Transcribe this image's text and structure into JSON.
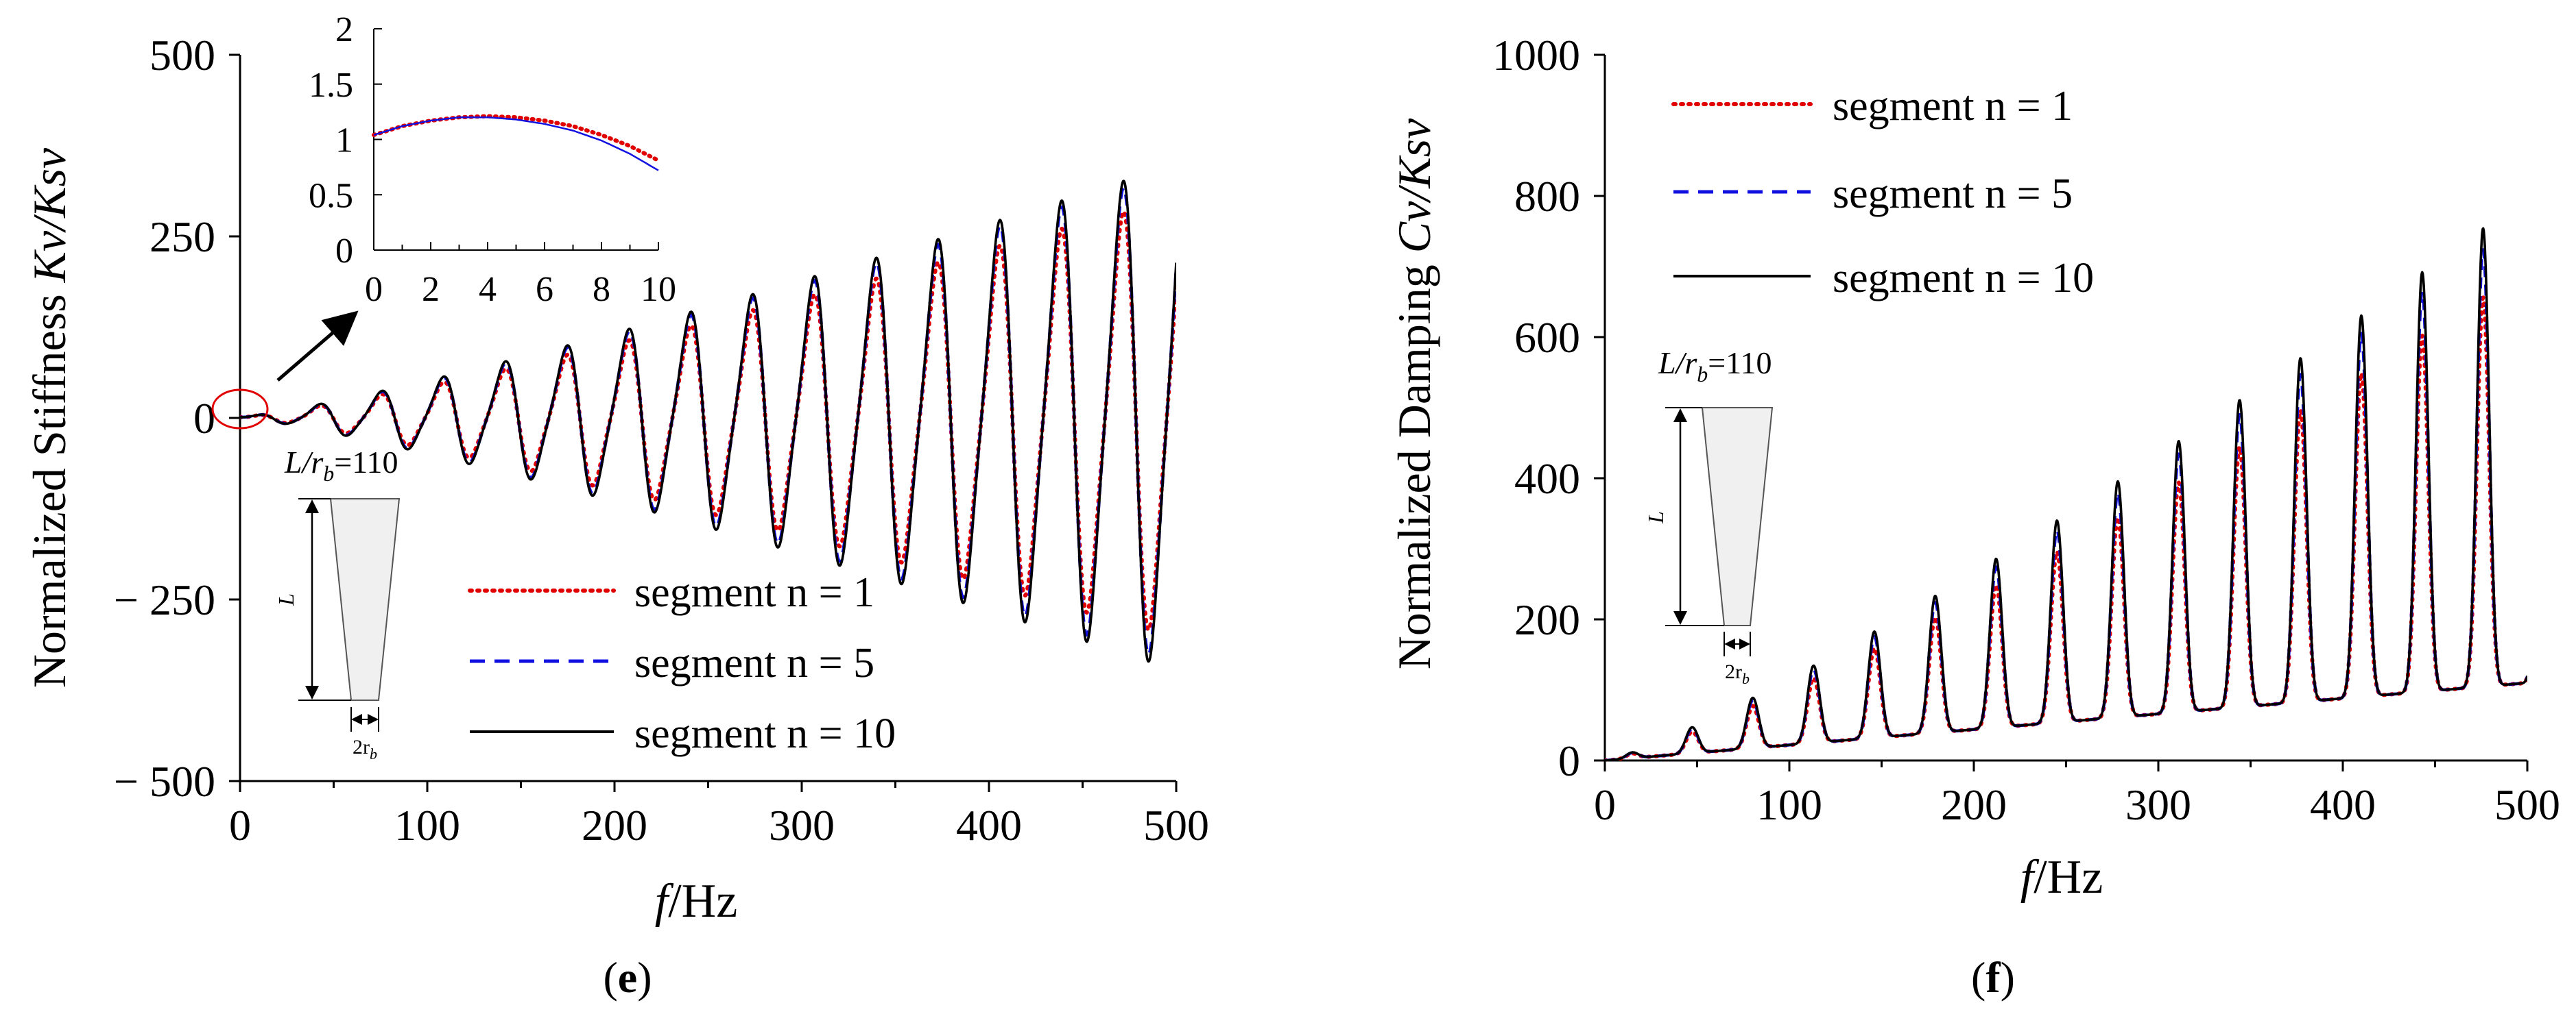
{
  "chart_data": [
    {
      "type": "line",
      "panel_label": "(e)",
      "ylabel_prefix": "Normalized Stiffness ",
      "ylabel_math": "Kv/Ksv",
      "xlabel_italic": "f",
      "xlabel_unit": "/Hz",
      "xlim": [
        0,
        500
      ],
      "ylim": [
        -500,
        500
      ],
      "x_ticks": [
        "0",
        "100",
        "200",
        "300",
        "400",
        "500"
      ],
      "y_ticks": [
        "500",
        "250",
        "0",
        "− 250",
        "− 500"
      ],
      "model": {
        "resonance_spacing_hz": 33.0,
        "amplitude_at_500hz": 330,
        "amplitude_exponent": 1.2,
        "static_value": 1.0
      },
      "series": [
        {
          "name": "segment n = 1",
          "color": "#e00000",
          "style": "dotted",
          "amplitude_scale": 0.87
        },
        {
          "name": "segment n = 5",
          "color": "#1010e0",
          "style": "dashed",
          "amplitude_scale": 0.97
        },
        {
          "name": "segment n = 10",
          "color": "#000000",
          "style": "solid",
          "amplitude_scale": 1.0
        }
      ],
      "legend": [
        "segment n = 1",
        "segment n = 5",
        "segment n = 10"
      ],
      "inset": {
        "xlim": [
          0,
          10
        ],
        "ylim": [
          0,
          2
        ],
        "x_ticks": [
          "0",
          "2",
          "4",
          "6",
          "8",
          "10"
        ],
        "y_ticks": [
          "2",
          "1.5",
          "1",
          "0.5",
          "0"
        ],
        "curves": [
          {
            "name": "segment n = 1",
            "values": [
              1.04,
              1.12,
              1.17,
              1.2,
              1.21,
              1.2,
              1.17,
              1.12,
              1.04,
              0.94,
              0.81
            ]
          },
          {
            "name": "segment n = 10",
            "values": [
              1.04,
              1.12,
              1.17,
              1.2,
              1.2,
              1.18,
              1.14,
              1.08,
              0.99,
              0.87,
              0.72
            ]
          }
        ]
      },
      "diagram": {
        "ratio_label": "L/r",
        "ratio_sub": "b",
        "ratio_value": "=110",
        "length_label": "L",
        "base_label": "2r",
        "base_sub": "b"
      }
    },
    {
      "type": "line",
      "panel_label": "(f)",
      "ylabel_prefix": "Normalized Damping ",
      "ylabel_math": "Cv/Ksv",
      "xlabel_italic": "f",
      "xlabel_unit": "/Hz",
      "xlim": [
        0,
        500
      ],
      "ylim": [
        0,
        1000
      ],
      "x_ticks": [
        "0",
        "100",
        "200",
        "300",
        "400",
        "500"
      ],
      "y_ticks": [
        "1000",
        "800",
        "600",
        "400",
        "200",
        "0"
      ],
      "model": {
        "resonance_spacing_hz": 33.0,
        "peak_at_500hz": 800,
        "peak_exponent": 1.2,
        "trough_at_500hz": 110,
        "trough_exponent": 1.0
      },
      "series": [
        {
          "name": "segment n = 1",
          "color": "#e00000",
          "style": "dotted",
          "amplitude_scale": 0.87
        },
        {
          "name": "segment n = 5",
          "color": "#1010e0",
          "style": "dashed",
          "amplitude_scale": 0.96
        },
        {
          "name": "segment n = 10",
          "color": "#000000",
          "style": "solid",
          "amplitude_scale": 1.0
        }
      ],
      "legend": [
        "segment n = 1",
        "segment n = 5",
        "segment n = 10"
      ],
      "diagram": {
        "ratio_label": "L/r",
        "ratio_sub": "b",
        "ratio_value": "=110",
        "length_label": "L",
        "base_label": "2r",
        "base_sub": "b"
      }
    }
  ]
}
